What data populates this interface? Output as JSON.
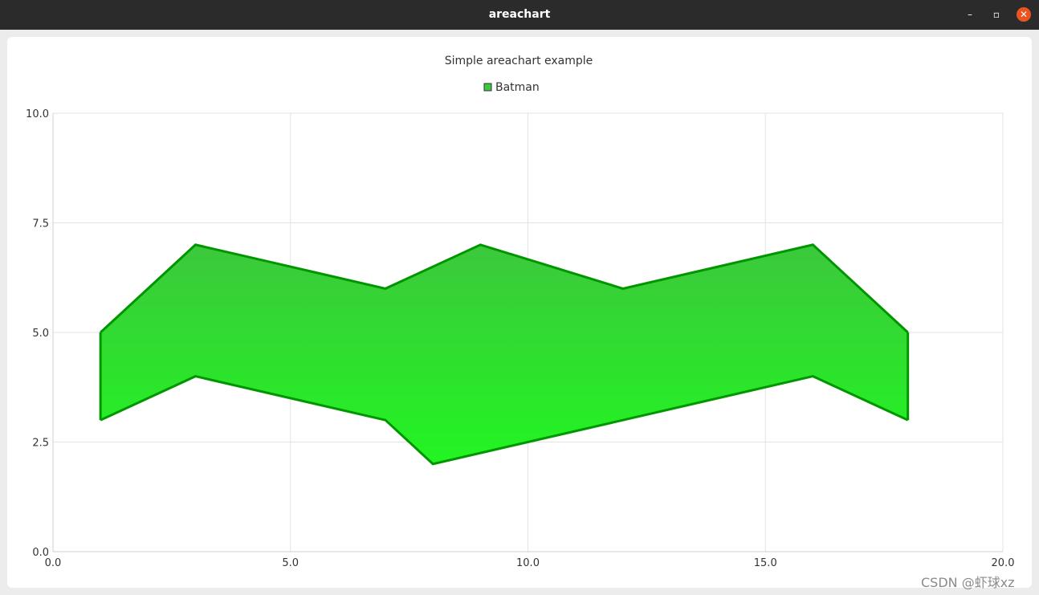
{
  "window": {
    "title": "areachart",
    "minimize_glyph": "–",
    "maximize_glyph": "▫",
    "close_glyph": "✕"
  },
  "watermark": "CSDN @虾球xz",
  "chart_data": {
    "type": "area",
    "title": "Simple areachart example",
    "legend": {
      "entries": [
        "Batman"
      ],
      "placement": "top-center"
    },
    "xlim": [
      0,
      20
    ],
    "ylim": [
      0,
      10
    ],
    "x_ticks": [
      "0.0",
      "5.0",
      "10.0",
      "15.0",
      "20.0"
    ],
    "y_ticks": [
      "0.0",
      "2.5",
      "5.0",
      "7.5",
      "10.0"
    ],
    "grid": true,
    "series": [
      {
        "name": "Batman",
        "upper": [
          [
            1,
            5
          ],
          [
            3,
            7
          ],
          [
            7,
            6
          ],
          [
            9,
            7
          ],
          [
            12,
            6
          ],
          [
            16,
            7
          ],
          [
            18,
            5
          ]
        ],
        "lower": [
          [
            1,
            3
          ],
          [
            3,
            4
          ],
          [
            7,
            3
          ],
          [
            8,
            2
          ],
          [
            12,
            3
          ],
          [
            16,
            4
          ],
          [
            18,
            3
          ]
        ],
        "fill_top": "#3cc83c",
        "fill_bottom": "#22f522",
        "stroke": "#009600"
      }
    ]
  }
}
